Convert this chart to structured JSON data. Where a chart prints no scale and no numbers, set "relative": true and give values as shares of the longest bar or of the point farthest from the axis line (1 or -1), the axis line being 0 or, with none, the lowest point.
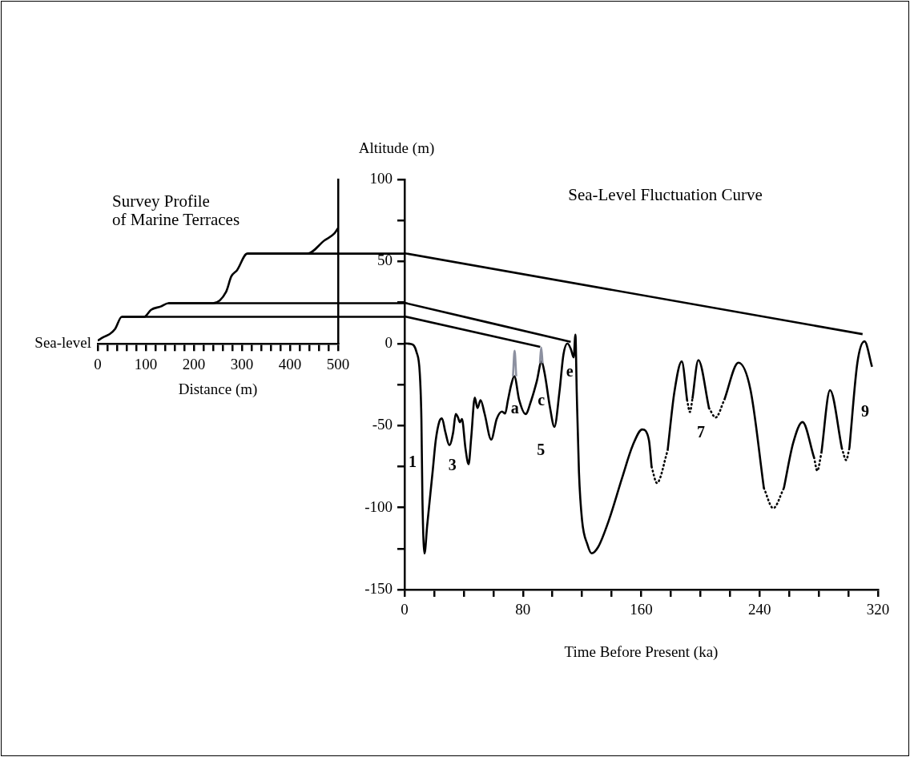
{
  "chart_data": [
    {
      "type": "line",
      "title": "Survey Profile\nof Marine Terraces",
      "xlabel": "Distance (m)",
      "xlim": [
        0,
        500
      ],
      "relative": true,
      "tick_labels": "x",
      "xticks": [
        0,
        {
          "value": 20,
          "label": null
        },
        {
          "value": 40,
          "label": null
        },
        {
          "value": 60,
          "label": null
        },
        {
          "value": 80,
          "label": null
        },
        100,
        {
          "value": 120,
          "label": null
        },
        {
          "value": 140,
          "label": null
        },
        {
          "value": 160,
          "label": null
        },
        {
          "value": 180,
          "label": null
        },
        200,
        {
          "value": 220,
          "label": null
        },
        {
          "value": 240,
          "label": null
        },
        {
          "value": 260,
          "label": null
        },
        {
          "value": 280,
          "label": null
        },
        300,
        {
          "value": 320,
          "label": null
        },
        {
          "value": 340,
          "label": null
        },
        {
          "value": 360,
          "label": null
        },
        {
          "value": 380,
          "label": null
        },
        400,
        {
          "value": 420,
          "label": null
        },
        {
          "value": 440,
          "label": null
        },
        {
          "value": 460,
          "label": null
        },
        {
          "value": 480,
          "label": null
        },
        500
      ],
      "annotations": [
        {
          "text": "Sea-level",
          "x": 0,
          "y": 0
        }
      ],
      "series": [
        {
          "color": "#000000",
          "x": [
            0,
            11,
            25,
            36,
            50,
            97,
            111,
            131,
            147,
            240,
            267,
            278,
            290,
            311,
            436,
            472,
            492,
            500
          ],
          "values": [
            0.028,
            0.057,
            0.085,
            0.128,
            0.234,
            0.234,
            0.295,
            0.323,
            0.352,
            0.352,
            0.45,
            0.584,
            0.638,
            0.78,
            0.78,
            0.895,
            0.953,
            1
          ]
        },
        {
          "color": "#000000",
          "x": [
            50,
            500
          ],
          "values": [
            0.234,
            0.234
          ]
        },
        {
          "color": "#000000",
          "x": [
            147,
            500
          ],
          "values": [
            0.352,
            0.352
          ]
        },
        {
          "color": "#000000",
          "x": [
            311,
            500
          ],
          "values": [
            0.78,
            0.78
          ]
        }
      ]
    },
    {
      "type": "line",
      "title": "Sea-Level Fluctuation Curve",
      "xlabel": "Time Before Present (ka)",
      "ylabel": "Altitude (m)",
      "xlim": [
        0,
        320
      ],
      "ylim": [
        -150,
        100
      ],
      "xticks": [
        0,
        {
          "value": 20,
          "label": null
        },
        {
          "value": 40,
          "label": null
        },
        {
          "value": 60,
          "label": null
        },
        80,
        {
          "value": 100,
          "label": null
        },
        {
          "value": 120,
          "label": null
        },
        {
          "value": 140,
          "label": null
        },
        160,
        {
          "value": 180,
          "label": null
        },
        {
          "value": 200,
          "label": null
        },
        {
          "value": 220,
          "label": null
        },
        240,
        {
          "value": 260,
          "label": null
        },
        {
          "value": 280,
          "label": null
        },
        {
          "value": 300,
          "label": null
        },
        320
      ],
      "yticks": [
        -150,
        {
          "value": -125,
          "label": null
        },
        -100,
        {
          "value": -75,
          "label": null
        },
        -50,
        {
          "value": -25,
          "label": null
        },
        0,
        {
          "value": 25,
          "label": null
        },
        50,
        {
          "value": 75,
          "label": null
        },
        100
      ],
      "annotations": [
        "1",
        "3",
        "5",
        "7",
        "9",
        "a",
        "c",
        "e"
      ],
      "series": [
        {
          "color": "#8c90a0",
          "x": [
            73.3,
            74.4,
            75.5
          ],
          "values": [
            -20,
            -4.4,
            -20
          ]
        },
        {
          "color": "#8c90a0",
          "x": [
            91.5,
            92.4,
            93.3
          ],
          "values": [
            -12,
            -2.4,
            -12
          ]
        },
        {
          "color": "#000000",
          "x": [
            0,
            4.5,
            8.1,
            10.3,
            11.4,
            12.1,
            13.5,
            15.3,
            19,
            21.1,
            23.5,
            25.3,
            27.6,
            30.3,
            32.9,
            34.6,
            36.1,
            37.4,
            38.8,
            41.2,
            43.3,
            45.1,
            47.5,
            49.3,
            51.4,
            54.1,
            58.6,
            62.3,
            65.9,
            68,
            69.9,
            72.2,
            74.2,
            77.5,
            81.8,
            85.7,
            89.4,
            92.6,
            94.7,
            98.4,
            101.3,
            104.7,
            107.4,
            110.1,
            112.5,
            114.3,
            115.5,
            116.4,
            117.9,
            120,
            123.6,
            126.4,
            130.9,
            138.1,
            147.1,
            154.3,
            160.7,
            165.2,
            167
          ],
          "values": [
            0,
            -0.3,
            -5.2,
            -18,
            -46,
            -95,
            -128,
            -111,
            -78,
            -59,
            -47.6,
            -45.6,
            -54,
            -62,
            -54,
            -43,
            -45,
            -48,
            -46,
            -64,
            -73.6,
            -57,
            -33,
            -39.4,
            -34.5,
            -42.7,
            -58.6,
            -46,
            -41.5,
            -42.7,
            -34.5,
            -24.8,
            -19.9,
            -34.5,
            -43,
            -34.5,
            -23,
            -10.9,
            -18.2,
            -39.4,
            -50.8,
            -29.6,
            -6.8,
            0,
            -3.6,
            -8.5,
            5.4,
            -29.6,
            -78.5,
            -107.8,
            -122.5,
            -127.9,
            -124,
            -107.8,
            -81.8,
            -62,
            -52.4,
            -58.9,
            -75.2
          ]
        },
        {
          "color": "#000000",
          "line_style": "dotted",
          "x": [
            167,
            170.6,
            177.8
          ],
          "values": [
            -75.2,
            -85,
            -65.4
          ]
        },
        {
          "color": "#000000",
          "x": [
            177.8,
            182.4,
            187.4,
            191
          ],
          "values": [
            -65.4,
            -29.6,
            -10.9,
            -34.5
          ]
        },
        {
          "color": "#000000",
          "line_style": "dotted",
          "x": [
            191,
            192.9,
            194.6
          ],
          "values": [
            -34.5,
            -41.8,
            -33.7
          ]
        },
        {
          "color": "#000000",
          "x": [
            194.6,
            198.6,
            205.8
          ],
          "values": [
            -33.7,
            -10.1,
            -39.4
          ]
        },
        {
          "color": "#000000",
          "line_style": "dotted",
          "x": [
            205.8,
            210.3,
            216.1
          ],
          "values": [
            -39.4,
            -45.1,
            -34.5
          ]
        },
        {
          "color": "#000000",
          "x": [
            216.1,
            225.7,
            233.8,
            242.9
          ],
          "values": [
            -34.5,
            -11.7,
            -28,
            -88.2
          ]
        },
        {
          "color": "#000000",
          "line_style": "dotted",
          "x": [
            242.9,
            249.2,
            256.4
          ],
          "values": [
            -88.2,
            -100.4,
            -88.2
          ]
        },
        {
          "color": "#000000",
          "x": [
            256.4,
            262.7,
            269,
            276.8
          ],
          "values": [
            -88.2,
            -60.6,
            -47.9,
            -69.5
          ]
        },
        {
          "color": "#000000",
          "line_style": "dotted",
          "x": [
            276.8,
            279,
            281.7
          ],
          "values": [
            -69.5,
            -77.6,
            -67.1
          ]
        },
        {
          "color": "#000000",
          "x": [
            281.7,
            287.6,
            295.6
          ],
          "values": [
            -67.1,
            -28.5,
            -63.8
          ]
        },
        {
          "color": "#000000",
          "line_style": "dotted",
          "x": [
            295.6,
            298.5,
            300.7
          ],
          "values": [
            -63.8,
            -71.1,
            -63.8
          ]
        },
        {
          "color": "#000000",
          "x": [
            300.7,
            306.1,
            310.9,
            316
          ],
          "values": [
            -63.8,
            -11.7,
            1.3,
            -14.2
          ]
        },
        {
          "color": "#000000",
          "x": [
            0,
            309.6
          ],
          "values": [
            55,
            5.7
          ]
        },
        {
          "color": "#000000",
          "x": [
            0,
            112.3
          ],
          "values": [
            24.8,
            1
          ]
        },
        {
          "color": "#000000",
          "x": [
            0,
            91.7
          ],
          "values": [
            16.5,
            -2.1
          ]
        }
      ]
    }
  ]
}
